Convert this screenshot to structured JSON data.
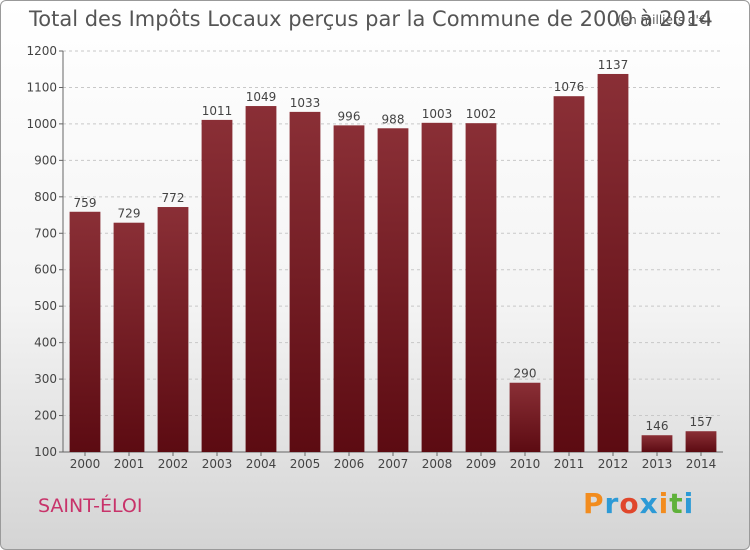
{
  "header": {
    "title": "Total des Impôts Locaux perçus par la Commune de 2000 à 2014",
    "unit": "(en milliers d'€)"
  },
  "footer": {
    "commune": "SAINT-ÉLOI",
    "logo": "Proxiti"
  },
  "colors": {
    "bar_top": "#8a2f36",
    "bar_bottom": "#5c0b12",
    "commune_text": "#c8336a"
  },
  "chart_data": {
    "type": "bar",
    "title": "Total des Impôts Locaux perçus par la Commune de 2000 à 2014",
    "subtitle": "(en milliers d'€)",
    "xlabel": "",
    "ylabel": "",
    "categories": [
      "2000",
      "2001",
      "2002",
      "2003",
      "2004",
      "2005",
      "2006",
      "2007",
      "2008",
      "2009",
      "2010",
      "2011",
      "2012",
      "2013",
      "2014"
    ],
    "values": [
      759,
      729,
      772,
      1011,
      1049,
      1033,
      996,
      988,
      1003,
      1002,
      290,
      1076,
      1137,
      146,
      157
    ],
    "data_labels": [
      "759",
      "729",
      "772",
      "1011",
      "1049",
      "1033",
      "996",
      "988",
      "1003",
      "1002",
      "290",
      "1076",
      "1137",
      "146",
      "157"
    ],
    "ylim": [
      100,
      1200
    ],
    "yticks": [
      100,
      200,
      300,
      400,
      500,
      600,
      700,
      800,
      900,
      1000,
      1100,
      1200
    ],
    "grid": true,
    "legend": "none"
  }
}
